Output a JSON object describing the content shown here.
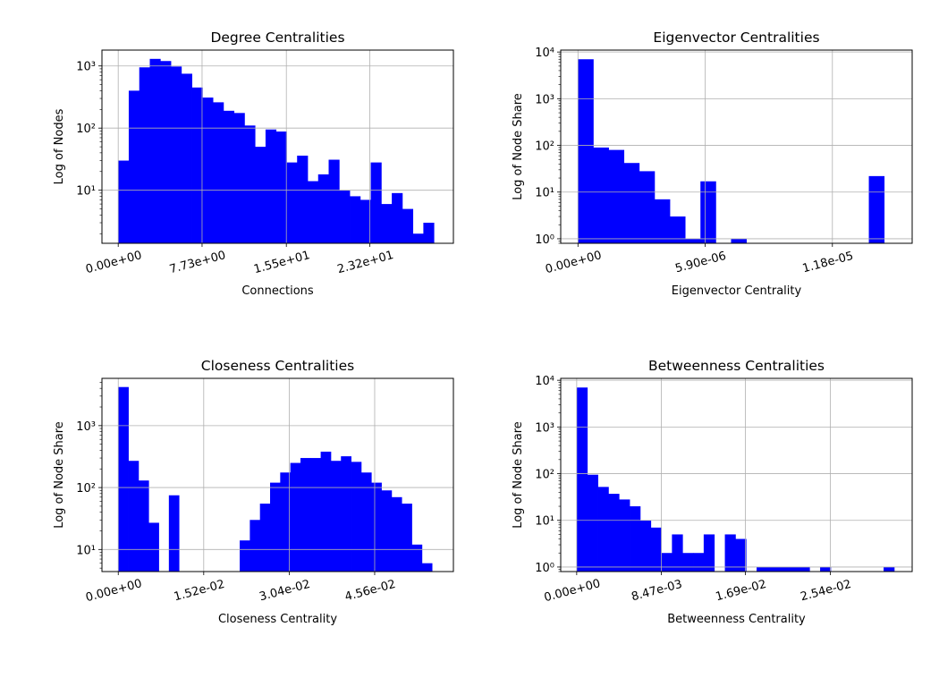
{
  "chart_data": [
    {
      "type": "bar",
      "title": "Degree Centralities",
      "xlabel": "Connections",
      "ylabel": "Log of Nodes",
      "yscale": "log",
      "grid": true,
      "bar_color": "#0000ff",
      "xlim": [
        -1.5,
        30.9
      ],
      "ylim": [
        1.4,
        1800
      ],
      "xticks": [
        0,
        7.73,
        15.5,
        23.2
      ],
      "xtick_labels": [
        "0.00e+00",
        "7.73e+00",
        "1.55e+01",
        "2.32e+01"
      ],
      "yticks": [
        10,
        100,
        1000
      ],
      "ytick_labels": [
        "10¹",
        "10²",
        "10³"
      ],
      "bin_edges": [
        0,
        0.97,
        1.94,
        2.91,
        3.88,
        4.85,
        5.82,
        6.79,
        7.76,
        8.73,
        9.7,
        10.67,
        11.64,
        12.61,
        13.58,
        14.55,
        15.52,
        16.49,
        17.46,
        18.43,
        19.4,
        20.37,
        21.34,
        22.31,
        23.28,
        24.25,
        25.22,
        26.19,
        27.16,
        28.13,
        29.1
      ],
      "values": [
        30,
        400,
        950,
        1300,
        1200,
        980,
        750,
        450,
        310,
        260,
        190,
        175,
        110,
        50,
        95,
        88,
        28,
        36,
        14,
        18,
        31,
        10,
        8,
        7,
        28,
        6,
        9,
        5,
        2,
        3
      ]
    },
    {
      "type": "bar",
      "title": "Eigenvector Centralities",
      "xlabel": "Eigenvector Centrality",
      "ylabel": "Log of Node Share",
      "yscale": "log",
      "grid": true,
      "bar_color": "#0000ff",
      "xlim": [
        -8e-07,
        1.55e-05
      ],
      "ylim": [
        0.8,
        11000
      ],
      "xticks": [
        0,
        5.9e-06,
        1.18e-05
      ],
      "xtick_labels": [
        "0.00e+00",
        "5.90e-06",
        "1.18e-05"
      ],
      "yticks": [
        1,
        10,
        100,
        1000,
        10000
      ],
      "ytick_labels": [
        "10⁰",
        "10¹",
        "10²",
        "10³",
        "10⁴"
      ],
      "bin_edges": [
        0,
        7.1e-07,
        1.42e-06,
        2.13e-06,
        2.84e-06,
        3.55e-06,
        4.26e-06,
        4.97e-06,
        5.68e-06,
        6.39e-06,
        7.1e-06,
        7.81e-06,
        8.52e-06,
        9.23e-06,
        9.94e-06,
        1.065e-05,
        1.136e-05,
        1.207e-05,
        1.278e-05,
        1.349e-05,
        1.42e-05
      ],
      "values": [
        7000,
        90,
        80,
        42,
        28,
        7,
        3,
        1,
        17,
        0,
        1,
        0,
        0,
        0,
        0,
        0,
        0,
        0,
        0,
        22
      ]
    },
    {
      "type": "bar",
      "title": "Closeness Centralities",
      "xlabel": "Closeness Centrality",
      "ylabel": "Log of Node Share",
      "yscale": "log",
      "grid": true,
      "bar_color": "#0000ff",
      "xlim": [
        -0.0029,
        0.0596
      ],
      "ylim": [
        4.4,
        5800
      ],
      "xticks": [
        0,
        0.0152,
        0.0304,
        0.0456
      ],
      "xtick_labels": [
        "0.00e+00",
        "1.52e-02",
        "3.04e-02",
        "4.56e-02"
      ],
      "yticks": [
        10,
        100,
        1000
      ],
      "ytick_labels": [
        "10¹",
        "10²",
        "10³"
      ],
      "bin_edges": [
        0,
        0.0018,
        0.0036,
        0.0054,
        0.0072,
        0.009,
        0.0108,
        0.0126,
        0.0144,
        0.0162,
        0.018,
        0.0198,
        0.0216,
        0.0234,
        0.0252,
        0.027,
        0.0288,
        0.0306,
        0.0324,
        0.0342,
        0.036,
        0.0378,
        0.0396,
        0.0414,
        0.0432,
        0.045,
        0.0468,
        0.0486,
        0.0504,
        0.0522,
        0.054,
        0.0558
      ],
      "values": [
        4200,
        270,
        130,
        27,
        0,
        75,
        0,
        0,
        0,
        0,
        0,
        0,
        14,
        30,
        55,
        120,
        175,
        250,
        300,
        300,
        380,
        270,
        320,
        260,
        175,
        120,
        90,
        70,
        55,
        12,
        6
      ]
    },
    {
      "type": "bar",
      "title": "Betweenness Centralities",
      "xlabel": "Betweenness Centrality",
      "ylabel": "Log of Node Share",
      "yscale": "log",
      "grid": true,
      "bar_color": "#0000ff",
      "xlim": [
        -0.0016,
        0.0336
      ],
      "ylim": [
        0.8,
        11000
      ],
      "xticks": [
        0,
        0.00847,
        0.0169,
        0.0254
      ],
      "xtick_labels": [
        "0.00e+00",
        "8.47e-03",
        "1.69e-02",
        "2.54e-02"
      ],
      "yticks": [
        1,
        10,
        100,
        1000,
        10000
      ],
      "ytick_labels": [
        "10⁰",
        "10¹",
        "10²",
        "10³",
        "10⁴"
      ],
      "bin_edges": [
        0,
        0.00106,
        0.00212,
        0.00318,
        0.00424,
        0.0053,
        0.00636,
        0.00742,
        0.00848,
        0.00954,
        0.0106,
        0.01166,
        0.01272,
        0.01378,
        0.01484,
        0.0159,
        0.01696,
        0.01802,
        0.01908,
        0.02014,
        0.0212,
        0.02226,
        0.02332,
        0.02438,
        0.02544,
        0.0265,
        0.02756,
        0.02862,
        0.02968,
        0.03074,
        0.0318
      ],
      "values": [
        7000,
        95,
        52,
        37,
        28,
        20,
        10,
        7,
        2,
        5,
        2,
        2,
        5,
        0,
        5,
        4,
        0,
        1,
        1,
        1,
        1,
        1,
        0,
        1,
        0,
        0,
        0,
        0,
        0,
        1
      ]
    }
  ]
}
